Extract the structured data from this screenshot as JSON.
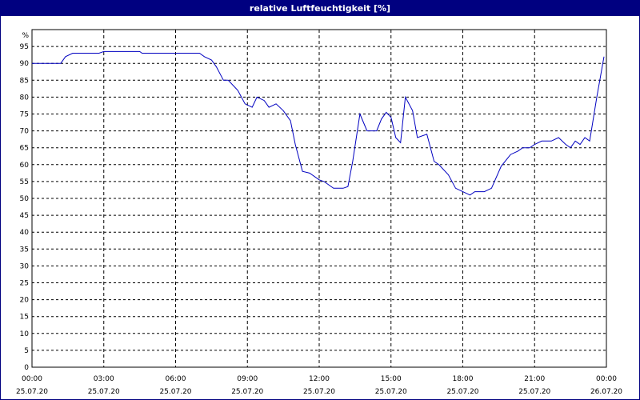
{
  "window": {
    "title": "relative Luftfeuchtigkeit [%]"
  },
  "colors": {
    "title_bg": "#000080",
    "series": "#0000c0",
    "grid": "#000000"
  },
  "chart_data": {
    "type": "line",
    "title": "relative Luftfeuchtigkeit [%]",
    "ylabel": "%",
    "ylim": [
      0,
      100
    ],
    "yticks": [
      0,
      5,
      10,
      15,
      20,
      25,
      30,
      35,
      40,
      45,
      50,
      55,
      60,
      65,
      70,
      75,
      80,
      85,
      90,
      95
    ],
    "xlim_hours": [
      0,
      24
    ],
    "xticks": [
      {
        "time": "00:00",
        "date": "25.07.20"
      },
      {
        "time": "03:00",
        "date": "25.07.20"
      },
      {
        "time": "06:00",
        "date": "25.07.20"
      },
      {
        "time": "09:00",
        "date": "25.07.20"
      },
      {
        "time": "12:00",
        "date": "25.07.20"
      },
      {
        "time": "15:00",
        "date": "25.07.20"
      },
      {
        "time": "18:00",
        "date": "25.07.20"
      },
      {
        "time": "21:00",
        "date": "25.07.20"
      },
      {
        "time": "00:00",
        "date": "26.07.20"
      }
    ],
    "grid": true,
    "series": [
      {
        "x": [
          0,
          1.2,
          1.4,
          1.7,
          2.0,
          2.8,
          3.0,
          4.5,
          4.6,
          7.0,
          7.2,
          7.5,
          7.7,
          8.0,
          8.2,
          8.6,
          8.9,
          9.2,
          9.4,
          9.7,
          9.9,
          10.2,
          10.5,
          10.8,
          11.0,
          11.3,
          11.6,
          12.0,
          12.2,
          12.6,
          13.0,
          13.2,
          13.4,
          13.7,
          14.0,
          14.4,
          14.6,
          14.8,
          15.0,
          15.2,
          15.4,
          15.6,
          15.9,
          16.1,
          16.5,
          16.8,
          17.0,
          17.4,
          17.7,
          18.0,
          18.3,
          18.5,
          18.9,
          19.2,
          19.6,
          20.0,
          20.3,
          20.5,
          20.8,
          21.0,
          21.3,
          21.7,
          22.0,
          22.3,
          22.5,
          22.7,
          22.9,
          23.1,
          23.3,
          23.6,
          23.9
        ],
        "y": [
          90,
          90,
          92,
          93,
          93,
          93,
          93.5,
          93.5,
          93,
          93,
          92,
          91,
          89,
          85,
          85,
          82,
          78,
          77,
          80,
          79,
          77,
          78,
          76,
          73,
          66,
          58,
          57.5,
          55.5,
          55,
          53,
          53,
          53.5,
          61,
          75,
          70,
          70,
          73.5,
          75.5,
          74,
          68,
          66.5,
          80,
          76,
          68,
          69,
          61,
          60,
          57,
          53,
          52,
          51,
          52,
          52,
          53,
          59.5,
          63,
          64,
          65,
          65,
          66,
          67,
          67,
          68,
          66,
          65,
          67,
          66,
          68,
          67,
          80,
          92
        ]
      }
    ]
  }
}
